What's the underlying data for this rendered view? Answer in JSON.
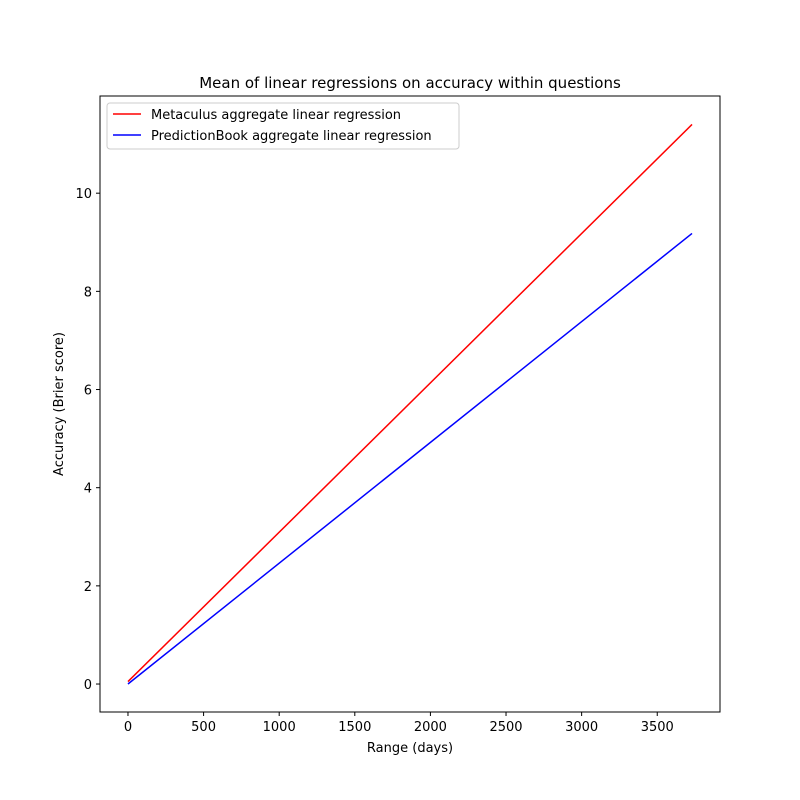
{
  "chart_data": {
    "type": "line",
    "title": "Mean of linear regressions on accuracy within questions",
    "xlabel": "Range (days)",
    "ylabel": "Accuracy (Brier score)",
    "x": [
      0,
      3730
    ],
    "series": [
      {
        "name": "Metaculus aggregate linear regression",
        "color": "#ff0000",
        "values": [
          0.05,
          11.4
        ]
      },
      {
        "name": "PredictionBook aggregate linear regression",
        "color": "#0000ff",
        "values": [
          0,
          9.18
        ]
      }
    ],
    "xlim": [
      -185,
      3915
    ],
    "ylim": [
      -0.57,
      11.98
    ],
    "xticks": [
      0,
      500,
      1000,
      1500,
      2000,
      2500,
      3000,
      3500
    ],
    "yticks": [
      0,
      2,
      4,
      6,
      8,
      10
    ],
    "legend": "upper left"
  }
}
